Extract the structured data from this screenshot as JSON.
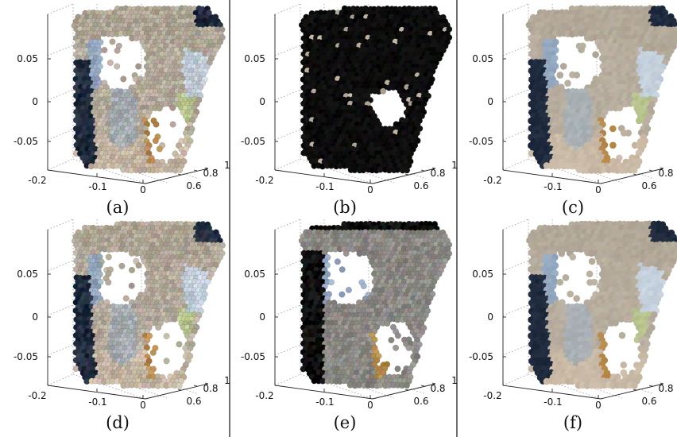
{
  "chart_data": [
    {
      "type": "scatter",
      "label": "(a)",
      "style": "full-color",
      "y_ticks": [
        "0.05",
        "0",
        "-0.05"
      ],
      "x_ticks": [
        "-0.2",
        "-0.1",
        "0"
      ],
      "z_ticks": [
        "0.6",
        "0.8",
        "1"
      ],
      "ylim": [
        -0.08,
        0.09
      ],
      "xlim": [
        -0.2,
        0.05
      ],
      "zlim": [
        0.6,
        1.0
      ],
      "grid": true
    },
    {
      "type": "scatter",
      "label": "(b)",
      "style": "mostly-black",
      "y_ticks": [
        "0.05",
        "0",
        "-0.05"
      ],
      "x_ticks": [
        "-0.2",
        "-0.1",
        "0"
      ],
      "z_ticks": [
        "0.6",
        "0.8",
        "1"
      ],
      "ylim": [
        -0.08,
        0.09
      ],
      "xlim": [
        -0.2,
        0.05
      ],
      "zlim": [
        0.6,
        1.0
      ],
      "grid": true
    },
    {
      "type": "scatter",
      "label": "(c)",
      "style": "smoothed-color",
      "y_ticks": [
        "0.05",
        "0",
        "-0.05"
      ],
      "x_ticks": [
        "-0.2",
        "-0.1",
        "0"
      ],
      "z_ticks": [
        "0.6",
        "0.8",
        "1"
      ],
      "ylim": [
        -0.08,
        0.09
      ],
      "xlim": [
        -0.2,
        0.05
      ],
      "zlim": [
        0.6,
        1.0
      ],
      "grid": true
    },
    {
      "type": "scatter",
      "label": "(d)",
      "style": "full-color",
      "y_ticks": [
        "0.05",
        "0",
        "-0.05"
      ],
      "x_ticks": [
        "-0.2",
        "-0.1",
        "0"
      ],
      "z_ticks": [
        "0.6",
        "0.8",
        "1"
      ],
      "ylim": [
        -0.08,
        0.09
      ],
      "xlim": [
        -0.2,
        0.05
      ],
      "zlim": [
        0.6,
        1.0
      ],
      "grid": true
    },
    {
      "type": "scatter",
      "label": "(e)",
      "style": "gray-partial",
      "y_ticks": [
        "0.05",
        "0",
        "-0.05"
      ],
      "x_ticks": [
        "-0.2",
        "-0.1",
        "0"
      ],
      "z_ticks": [
        "0.6",
        "0.8",
        "1"
      ],
      "ylim": [
        -0.08,
        0.09
      ],
      "xlim": [
        -0.2,
        0.05
      ],
      "zlim": [
        0.6,
        1.0
      ],
      "grid": true
    },
    {
      "type": "scatter",
      "label": "(f)",
      "style": "smoothed-color",
      "y_ticks": [
        "0.05",
        "0",
        "-0.05"
      ],
      "x_ticks": [
        "-0.2",
        "-0.1",
        "0"
      ],
      "z_ticks": [
        "0.6",
        "0.8",
        "1"
      ],
      "ylim": [
        -0.08,
        0.09
      ],
      "xlim": [
        -0.2,
        0.05
      ],
      "zlim": [
        0.6,
        1.0
      ],
      "grid": true
    }
  ],
  "colors": {
    "ceiling": "#b2a898",
    "wall": "#b7ad9e",
    "window_blue": "#94a9c0",
    "window_light": "#c4d0dc",
    "dark_blue": "#1f2a3d",
    "green_yellow": "#b9c48e",
    "vase_gray": "#a9b0b4",
    "orange_brown": "#b8894a",
    "floor": "#c9b9a6",
    "black": "#0b0b0b",
    "gray_e": "#8d8b86"
  }
}
